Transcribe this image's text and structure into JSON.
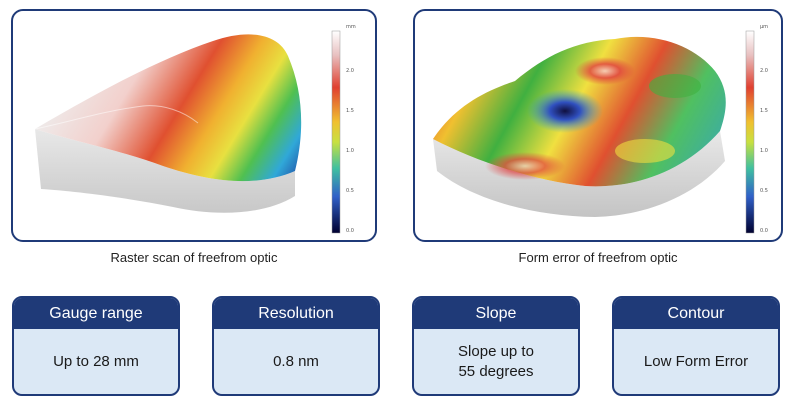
{
  "figures": [
    {
      "caption": "Raster scan of freefrom optic",
      "colorbar": {
        "unit": "mm",
        "ticks": [
          "2.0",
          "1.5",
          "1.0",
          "0.5",
          "0.0"
        ]
      }
    },
    {
      "caption": "Form error of freefrom optic",
      "colorbar": {
        "unit": "µm",
        "ticks": [
          "2.0",
          "1.5",
          "1.0",
          "0.5",
          "0.0"
        ]
      }
    }
  ],
  "specs": [
    {
      "title": "Gauge range",
      "value": "Up to 28 mm"
    },
    {
      "title": "Resolution",
      "value": "0.8 nm"
    },
    {
      "title": "Slope",
      "value": "Slope up to\n55 degrees"
    },
    {
      "title": "Contour",
      "value": "Low Form Error"
    }
  ],
  "colors": {
    "frame": "#1f3a78",
    "spec_body": "#dbe8f5",
    "colormap": [
      "#ffffff",
      "#e06060",
      "#e8a030",
      "#f0e040",
      "#60c040",
      "#30b0d0",
      "#2040c0",
      "#000040"
    ]
  }
}
